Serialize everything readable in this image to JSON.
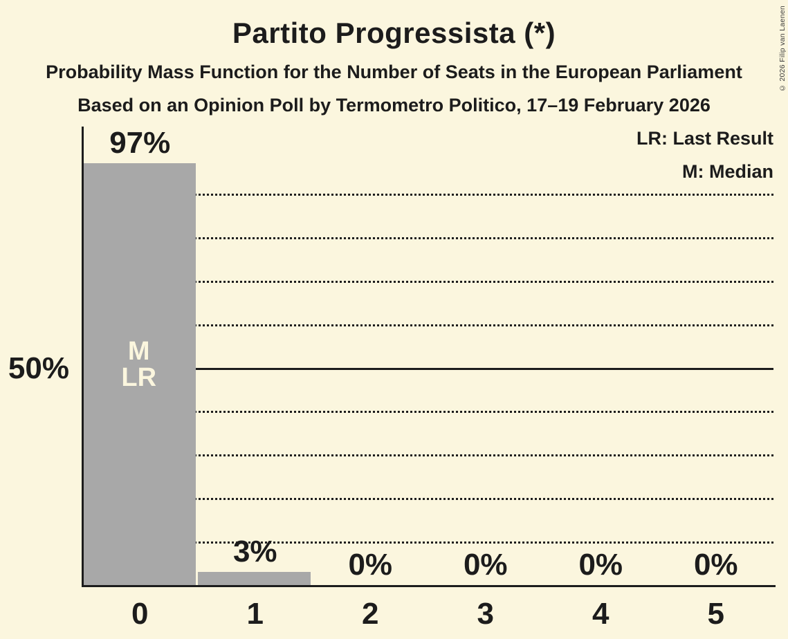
{
  "title": "Partito Progressista (*)",
  "subtitle1": "Probability Mass Function for the Number of Seats in the European Parliament",
  "subtitle2": "Based on an Opinion Poll by Termometro Politico, 17–19 February 2026",
  "legend": {
    "lr": "LR: Last Result",
    "m": "M: Median"
  },
  "copyright": "© 2026 Filip van Laenen",
  "y_axis_label": "50%",
  "colors": {
    "background": "#FBF6DE",
    "bar": "#A8A8A8",
    "text": "#1C1C1C",
    "overlay_text": "#FBF6DE",
    "copyright_text": "#3C3C3C"
  },
  "chart_data": {
    "type": "bar",
    "title": "Partito Progressista (*)",
    "categories": [
      "0",
      "1",
      "2",
      "3",
      "4",
      "5"
    ],
    "values": [
      97,
      3,
      0,
      0,
      0,
      0
    ],
    "value_labels": [
      "97%",
      "3%",
      "0%",
      "0%",
      "0%",
      "0%"
    ],
    "xlabel": "",
    "ylabel": "",
    "ylim": [
      0,
      100
    ],
    "y_tick_labels": [
      {
        "pct": 50,
        "label": "50%"
      }
    ],
    "gridlines_pct": [
      10,
      20,
      30,
      40,
      50,
      60,
      70,
      80,
      90
    ],
    "solid_gridline_pct": 50,
    "grid_style": "dotted",
    "legend_position": "top-right",
    "annotations": [
      {
        "category": "0",
        "lines": [
          "M",
          "LR"
        ],
        "meaning": [
          "Median",
          "Last Result"
        ]
      }
    ]
  }
}
